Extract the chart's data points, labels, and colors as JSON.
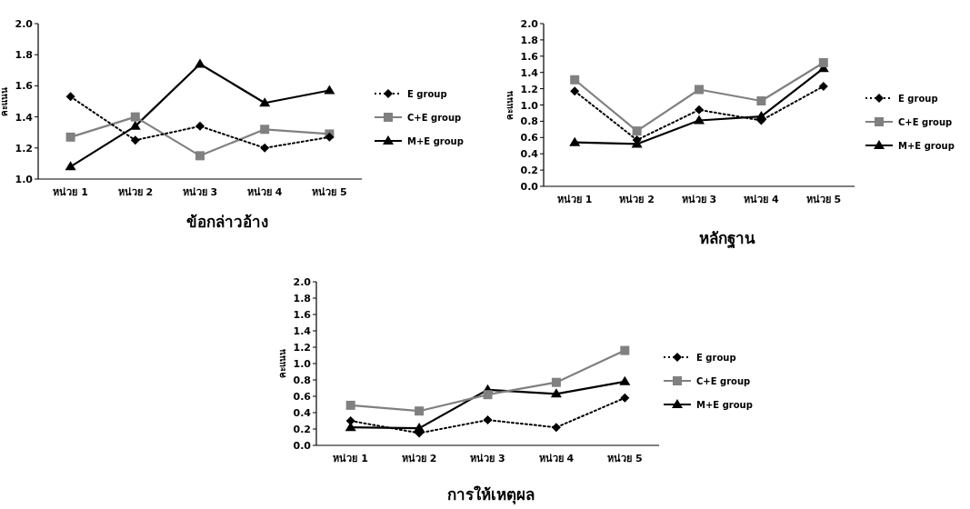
{
  "chart_data": [
    {
      "type": "line",
      "title": "ข้อกล่าวอ้าง",
      "ylabel": "คะแนน",
      "categories": [
        "หน่วย 1",
        "หน่วย 2",
        "หน่วย 3",
        "หน่วย 4",
        "หน่วย 5"
      ],
      "ylim": [
        1,
        2
      ],
      "yticks": [
        {
          "value": 1,
          "label": "1.0"
        },
        {
          "value": 1.2,
          "label": "1.2"
        },
        {
          "value": 1.4,
          "label": "1.4"
        },
        {
          "value": 1.6,
          "label": "1.6"
        },
        {
          "value": 1.8,
          "label": "1.8"
        },
        {
          "value": 2,
          "label": "2.0"
        }
      ],
      "grid": false,
      "legend": "right",
      "series": [
        {
          "name": "E group",
          "color": "#000000",
          "marker": "diamond",
          "line_style": "dotted",
          "values": [
            1.53,
            1.25,
            1.34,
            1.2,
            1.27
          ]
        },
        {
          "name": "C+E group",
          "color": "#808080",
          "marker": "square",
          "line_style": "solid",
          "values": [
            1.27,
            1.4,
            1.15,
            1.32,
            1.29
          ]
        },
        {
          "name": "M+E group",
          "color": "#000000",
          "marker": "triangle",
          "line_style": "solid",
          "values": [
            1.08,
            1.34,
            1.74,
            1.49,
            1.57
          ]
        }
      ]
    },
    {
      "type": "line",
      "title": "หลักฐาน",
      "ylabel": "คะแนน",
      "categories": [
        "หน่วย 1",
        "หน่วย 2",
        "หน่วย 3",
        "หน่วย 4",
        "หน่วย 5"
      ],
      "ylim": [
        0,
        2
      ],
      "yticks": [
        {
          "value": 0,
          "label": "0.0"
        },
        {
          "value": 0.2,
          "label": "0.2"
        },
        {
          "value": 0.4,
          "label": "0.4"
        },
        {
          "value": 0.6,
          "label": "0.6"
        },
        {
          "value": 0.8,
          "label": "0.8"
        },
        {
          "value": 1,
          "label": "1.0"
        },
        {
          "value": 1.2,
          "label": "1.2"
        },
        {
          "value": 1.4,
          "label": "1.4"
        },
        {
          "value": 1.6,
          "label": "1.6"
        },
        {
          "value": 1.8,
          "label": "1.8"
        },
        {
          "value": 2,
          "label": "2.0"
        }
      ],
      "grid": false,
      "legend": "right",
      "series": [
        {
          "name": "E group",
          "color": "#000000",
          "marker": "diamond",
          "line_style": "dotted",
          "values": [
            1.17,
            0.57,
            0.94,
            0.81,
            1.23
          ]
        },
        {
          "name": "C+E group",
          "color": "#808080",
          "marker": "square",
          "line_style": "solid",
          "values": [
            1.31,
            0.68,
            1.19,
            1.05,
            1.52
          ]
        },
        {
          "name": "M+E group",
          "color": "#000000",
          "marker": "triangle",
          "line_style": "solid",
          "values": [
            0.54,
            0.52,
            0.81,
            0.86,
            1.45
          ]
        }
      ]
    },
    {
      "type": "line",
      "title": "การให้เหตุผล",
      "ylabel": "คะแนน",
      "categories": [
        "หน่วย 1",
        "หน่วย 2",
        "หน่วย 3",
        "หน่วย 4",
        "หน่วย 5"
      ],
      "ylim": [
        0,
        2
      ],
      "yticks": [
        {
          "value": 0,
          "label": "0.0"
        },
        {
          "value": 0.2,
          "label": "0.2"
        },
        {
          "value": 0.4,
          "label": "0.4"
        },
        {
          "value": 0.6,
          "label": "0.6"
        },
        {
          "value": 0.8,
          "label": "0.8"
        },
        {
          "value": 1,
          "label": "1.0"
        },
        {
          "value": 1.2,
          "label": "1.2"
        },
        {
          "value": 1.4,
          "label": "1.4"
        },
        {
          "value": 1.6,
          "label": "1.6"
        },
        {
          "value": 1.8,
          "label": "1.8"
        },
        {
          "value": 2,
          "label": "2.0"
        }
      ],
      "grid": false,
      "legend": "right",
      "series": [
        {
          "name": "E group",
          "color": "#000000",
          "marker": "diamond",
          "line_style": "dotted",
          "values": [
            0.3,
            0.15,
            0.31,
            0.22,
            0.58
          ]
        },
        {
          "name": "C+E group",
          "color": "#808080",
          "marker": "square",
          "line_style": "solid",
          "values": [
            0.49,
            0.42,
            0.62,
            0.77,
            1.16
          ]
        },
        {
          "name": "M+E group",
          "color": "#000000",
          "marker": "triangle",
          "line_style": "solid",
          "values": [
            0.22,
            0.21,
            0.68,
            0.63,
            0.78
          ]
        }
      ]
    }
  ]
}
